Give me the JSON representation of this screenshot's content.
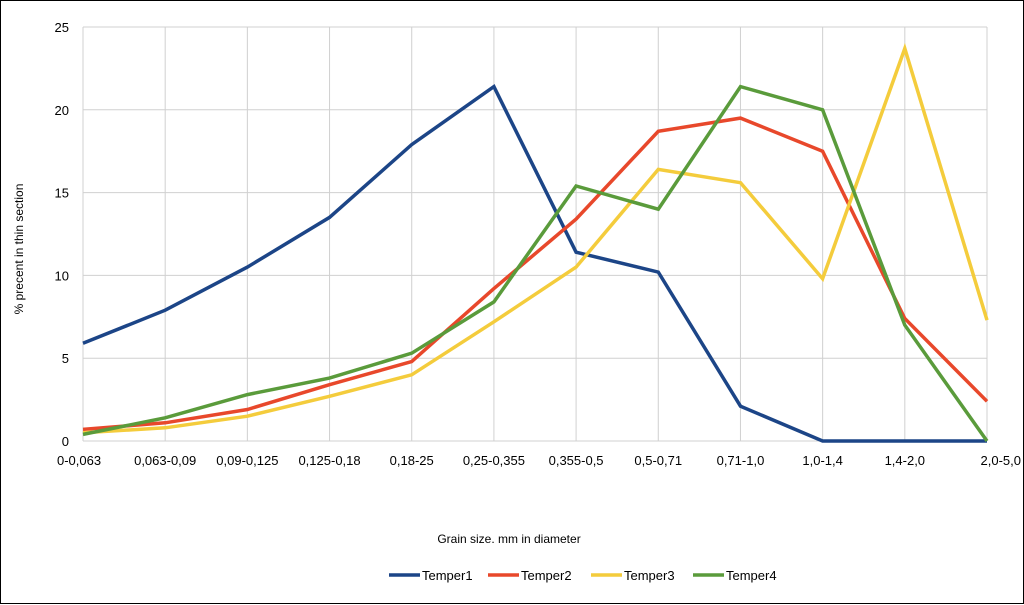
{
  "chart_data": {
    "type": "line",
    "title": "",
    "xlabel": "Grain size. mm in diameter",
    "ylabel": "% precent in thin section",
    "ylim": [
      0,
      25
    ],
    "yticks": [
      0,
      5,
      10,
      15,
      20,
      25
    ],
    "grid": "on",
    "legend_position": "bottom",
    "categories": [
      "0-0,063",
      "0,063-0,09",
      "0,09-0,125",
      "0,125-0,18",
      "0,18-25",
      "0,25-0,355",
      "0,355-0,5",
      "0,5-0,71",
      "0,71-1,0",
      "1,0-1,4",
      "1,4-2,0",
      "2,0-5,0"
    ],
    "series": [
      {
        "name": "Temper1",
        "color": "#1c4587",
        "values": [
          5.9,
          7.9,
          10.5,
          13.5,
          17.9,
          21.4,
          11.4,
          10.2,
          2.1,
          0,
          0,
          0
        ]
      },
      {
        "name": "Temper2",
        "color": "#e8482b",
        "values": [
          0.7,
          1.1,
          1.9,
          3.4,
          4.8,
          9.2,
          13.4,
          18.7,
          19.5,
          17.5,
          7.4,
          2.4
        ]
      },
      {
        "name": "Temper3",
        "color": "#f4cc3c",
        "values": [
          0.5,
          0.8,
          1.5,
          2.7,
          4.0,
          7.2,
          10.5,
          16.4,
          15.6,
          9.8,
          23.7,
          7.3
        ]
      },
      {
        "name": "Temper4",
        "color": "#5a9b3b",
        "values": [
          0.4,
          1.4,
          2.8,
          3.8,
          5.3,
          8.4,
          15.4,
          14.0,
          21.4,
          20.0,
          7.0,
          0
        ]
      }
    ]
  }
}
